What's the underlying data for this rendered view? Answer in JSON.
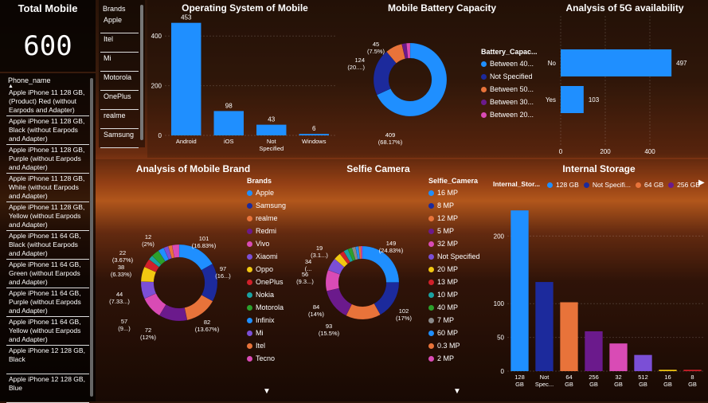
{
  "kpi": {
    "title": "Total Mobile",
    "value": "600"
  },
  "phone_slicer": {
    "header": "Phone_name",
    "items": [
      "Apple iPhone 11 128 GB, (Product) Red (without Earpods and Adapter)",
      "Apple iPhone 11 128 GB, Black (without Earpods and Adapter)",
      "Apple iPhone 11 128 GB, Purple (without Earpods and Adapter)",
      "Apple iPhone 11 128 GB, White (without Earpods and Adapter)",
      "Apple iPhone 11 128 GB, Yellow (without Earpods and Adapter)",
      "Apple iPhone 11 64 GB, Black (without Earpods and Adapter)",
      "Apple iPhone 11 64 GB, Green (without Earpods and Adapter)",
      "Apple iPhone 11 64 GB, Purple (without Earpods and Adapter)",
      "Apple iPhone 11 64 GB, Yellow (without Earpods and Adapter)",
      "Apple iPhone 12 128 GB, Black",
      "Apple iPhone 12 128 GB, Blue"
    ]
  },
  "brand_slicer": {
    "header": "Brands",
    "items": [
      "Apple",
      "Itel",
      "Mi",
      "Motorola",
      "OnePlus",
      "realme",
      "Samsung"
    ]
  },
  "colors": {
    "blue": "#1f8fff",
    "navy": "#1c2a9c",
    "orange": "#e8733a",
    "purple": "#6b1a8c",
    "pink": "#d94bb5",
    "violet": "#7b4fd6",
    "yellow": "#f2c811",
    "red": "#d0202a",
    "teal": "#1aa2a2",
    "green": "#2ca02c",
    "gray": "#8a8a8a"
  },
  "chart_data": [
    {
      "id": "os",
      "type": "bar",
      "title": "Operating System of Mobile",
      "categories": [
        "Android",
        "iOS",
        "Not Specified",
        "Windows"
      ],
      "values": [
        453,
        98,
        43,
        6
      ],
      "ylim": [
        0,
        500
      ],
      "yticks": [
        0,
        200,
        400
      ]
    },
    {
      "id": "battery",
      "type": "pie",
      "title": "Mobile Battery Capacity",
      "legend_title": "Battery_Capac...",
      "labels": [
        "Between 40...",
        "Not Specified",
        "Between 50...",
        "Between 30...",
        "Between 20..."
      ],
      "values": [
        409,
        124,
        45,
        12,
        10
      ],
      "data_labels": [
        "409 (68.17%)",
        "124 (20....)",
        "45 (7.5%)",
        "",
        ""
      ]
    },
    {
      "id": "fiveg",
      "type": "bar",
      "orientation": "horizontal",
      "title": "Analysis of 5G availability",
      "categories": [
        "No",
        "Yes"
      ],
      "values": [
        497,
        103
      ],
      "xlim": [
        0,
        550
      ],
      "xticks": [
        0,
        200,
        400
      ]
    },
    {
      "id": "brand",
      "type": "pie",
      "title": "Analysis of Mobile Brand",
      "legend_title": "Brands",
      "labels": [
        "Apple",
        "Samsung",
        "realme",
        "Redmi",
        "Vivo",
        "Xiaomi",
        "Oppo",
        "OnePlus",
        "Nokia",
        "Motorola",
        "Infinix",
        "Mi",
        "Itel",
        "Tecno"
      ],
      "values": [
        101,
        97,
        82,
        72,
        57,
        44,
        38,
        22,
        12,
        20,
        15,
        12,
        10,
        18
      ],
      "data_labels": [
        "101 (16.83%)",
        "97 (16...)",
        "82 (13.67%)",
        "72 (12%)",
        "57 (9...)",
        "44 (7.33...)",
        "38 (6.33%)",
        "22 (3.67%)",
        "12 (2%)",
        "",
        "",
        "",
        "",
        ""
      ]
    },
    {
      "id": "selfie",
      "type": "pie",
      "title": "Selfie Camera",
      "legend_title": "Selfie_Camera",
      "labels": [
        "16 MP",
        "8 MP",
        "12 MP",
        "5 MP",
        "32 MP",
        "Not Specified",
        "20 MP",
        "13 MP",
        "10 MP",
        "40 MP",
        "7 MP",
        "60 MP",
        "0.3 MP",
        "2 MP"
      ],
      "values": [
        149,
        102,
        93,
        84,
        56,
        34,
        19,
        12,
        12,
        11,
        10,
        8,
        6,
        4
      ],
      "data_labels": [
        "149 (24.83%)",
        "102 (17%)",
        "93 (15.5%)",
        "84 (14%)",
        "56 (9.3...)",
        "34 (...",
        "19 (3.1...)",
        "",
        "",
        "",
        "",
        "",
        "",
        ""
      ]
    },
    {
      "id": "storage",
      "type": "bar",
      "title": "Internal Storage",
      "legend_title": "Internal_Stor...",
      "legend_items": [
        "128 GB",
        "Not Specifi...",
        "64 GB",
        "256 GB"
      ],
      "categories": [
        "128 GB",
        "Not Spec...",
        "64 GB",
        "256 GB",
        "32 GB",
        "512 GB",
        "16 GB",
        "8 GB"
      ],
      "values": [
        238,
        132,
        102,
        59,
        41,
        24,
        2,
        2
      ],
      "ylim": [
        0,
        250
      ],
      "yticks": [
        0,
        50,
        100,
        200
      ]
    }
  ]
}
